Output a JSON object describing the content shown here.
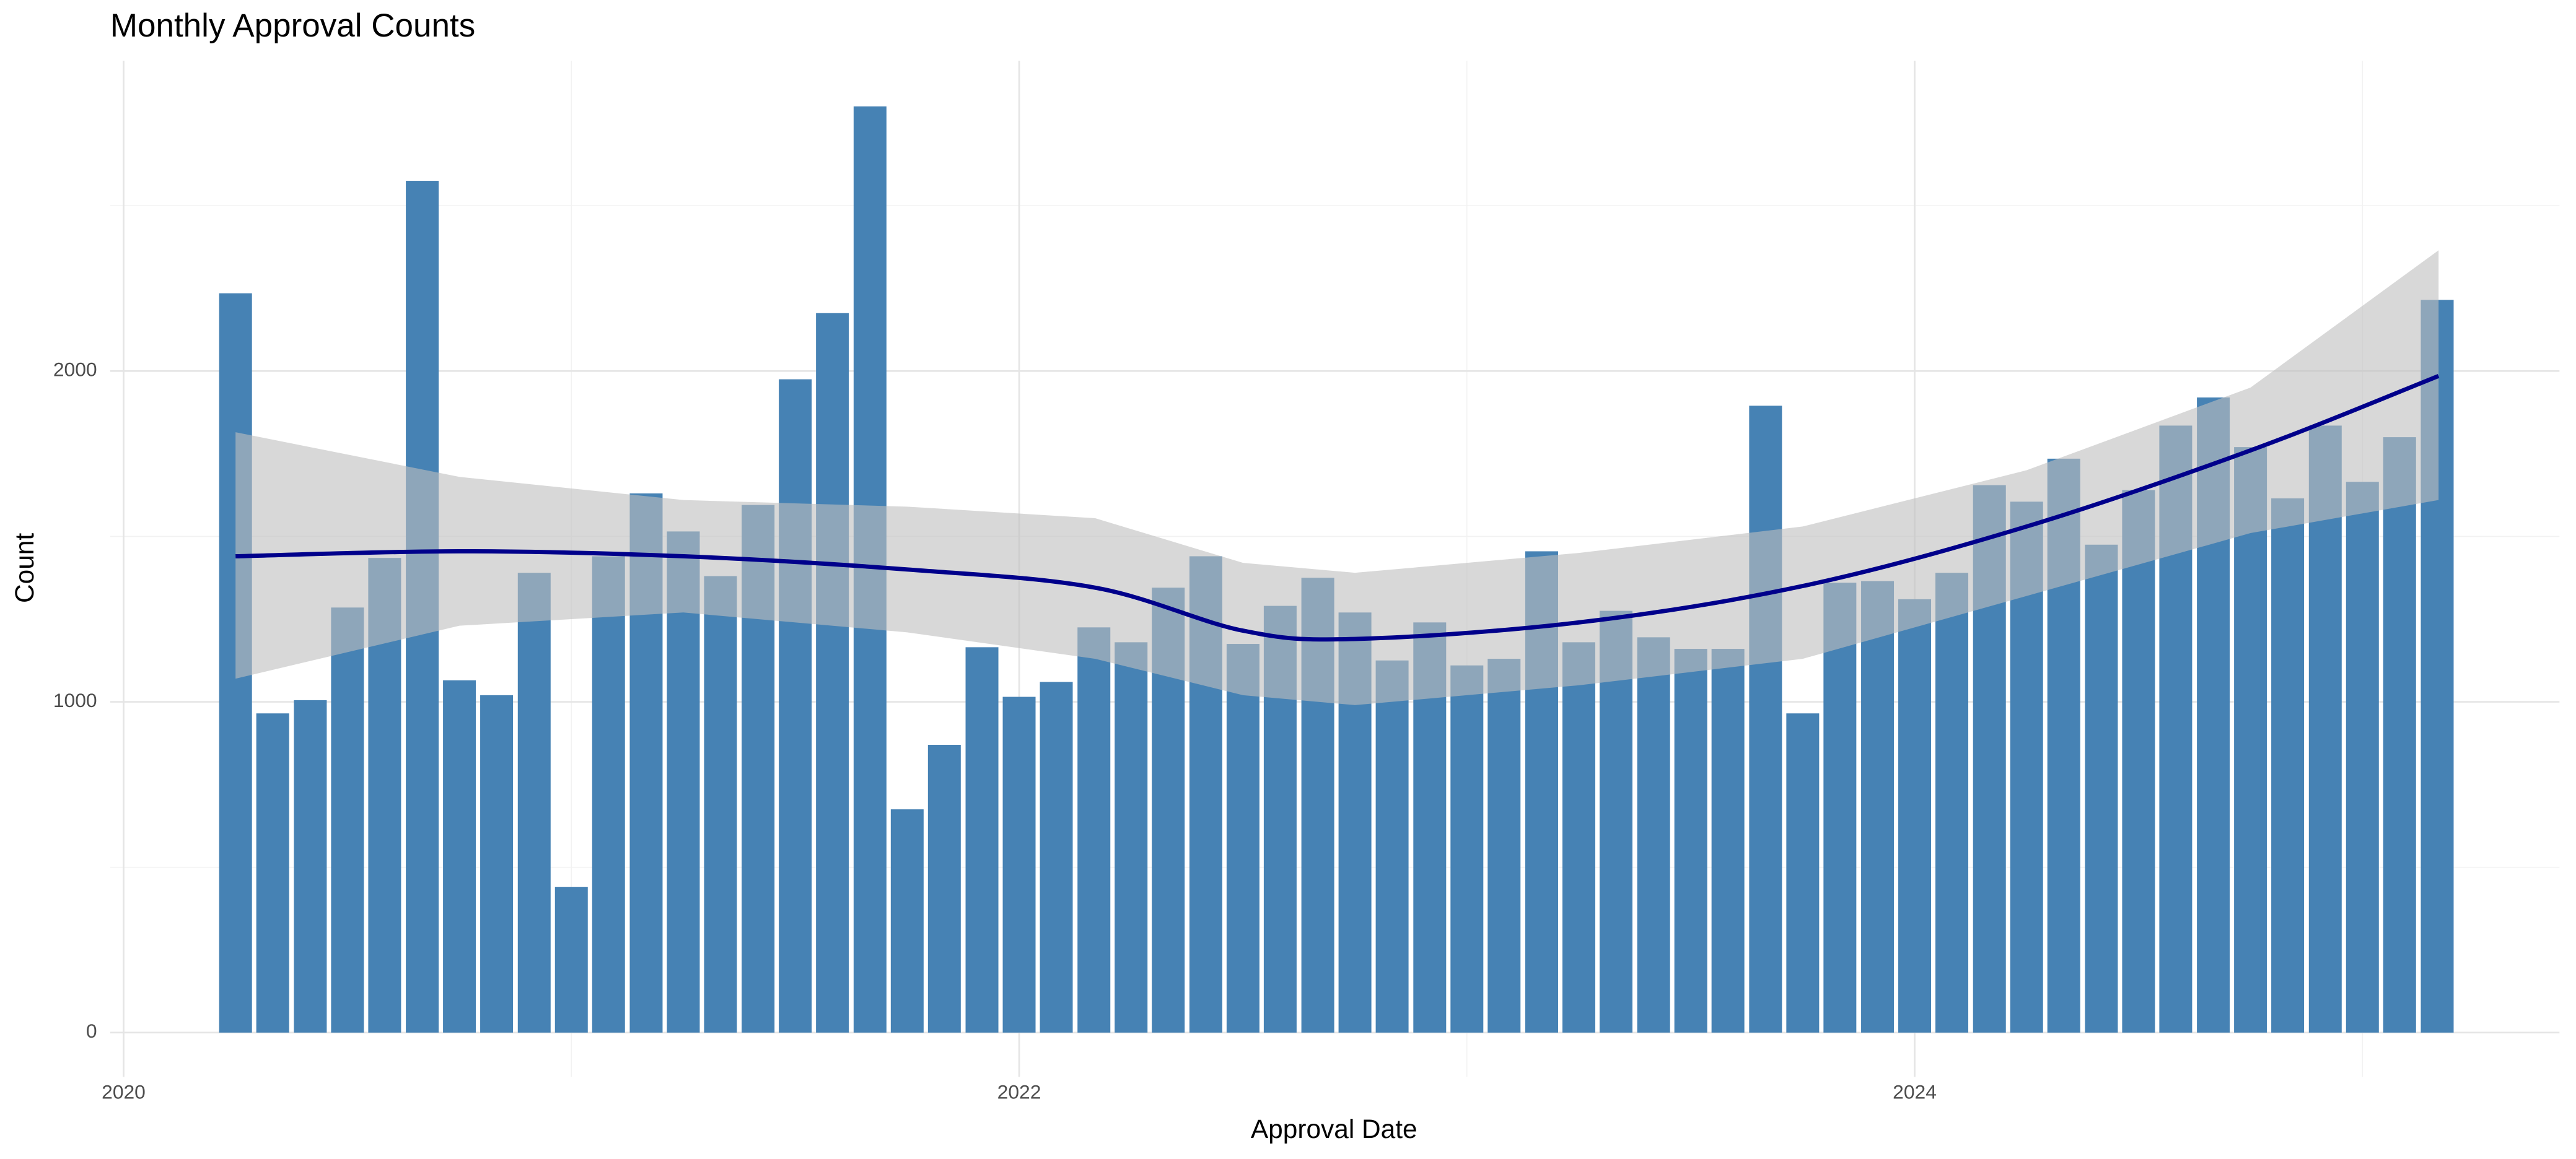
{
  "chart_data": {
    "type": "bar",
    "title": "Monthly Approval Counts",
    "x_label": "Approval Date",
    "y_label": "Count",
    "color": "#4682b4",
    "x": [
      2020.25,
      2020.333,
      2020.417,
      2020.5,
      2020.583,
      2020.667,
      2020.75,
      2020.833,
      2020.917,
      2021.0,
      2021.083,
      2021.167,
      2021.25,
      2021.333,
      2021.417,
      2021.5,
      2021.583,
      2021.667,
      2021.75,
      2021.833,
      2021.917,
      2022.0,
      2022.083,
      2022.167,
      2022.25,
      2022.333,
      2022.417,
      2022.5,
      2022.583,
      2022.667,
      2022.75,
      2022.833,
      2022.917,
      2023.0,
      2023.083,
      2023.167,
      2023.25,
      2023.333,
      2023.417,
      2023.5,
      2023.583,
      2023.667,
      2023.75,
      2023.833,
      2023.917,
      2024.0,
      2024.083,
      2024.167,
      2024.25,
      2024.333,
      2024.417,
      2024.5,
      2024.583,
      2024.667,
      2024.75,
      2024.833,
      2024.917,
      2025.0,
      2025.083,
      2025.167
    ],
    "values": [
      2235,
      965,
      1005,
      1285,
      1435,
      2575,
      1065,
      1020,
      1390,
      440,
      1440,
      1630,
      1515,
      1380,
      1595,
      1975,
      2175,
      2800,
      675,
      870,
      1165,
      1015,
      1060,
      1225,
      1180,
      1345,
      1440,
      1175,
      1290,
      1375,
      1270,
      1125,
      1240,
      1110,
      1130,
      1455,
      1180,
      1275,
      1195,
      1160,
      1160,
      1895,
      965,
      1360,
      1365,
      1310,
      1390,
      1655,
      1605,
      1735,
      1475,
      1640,
      1835,
      1920,
      1770,
      1615,
      1835,
      1665,
      1800,
      2215
    ],
    "trend": {
      "color": "#00008b",
      "band_color": "#bebebe",
      "x": [
        2020.25,
        2020.75,
        2021.25,
        2021.75,
        2022.17,
        2022.5,
        2022.75,
        2023.25,
        2023.75,
        2024.25,
        2024.75,
        2025.17
      ],
      "values": [
        1440,
        1455,
        1440,
        1400,
        1345,
        1215,
        1190,
        1240,
        1350,
        1530,
        1760,
        1985
      ],
      "lower": [
        1070,
        1230,
        1270,
        1210,
        1130,
        1020,
        990,
        1050,
        1130,
        1320,
        1510,
        1610
      ],
      "upper": [
        1815,
        1680,
        1610,
        1590,
        1555,
        1420,
        1390,
        1450,
        1530,
        1700,
        1950,
        2365
      ]
    },
    "xlim": [
      2019.97,
      2025.44
    ],
    "xticks": [
      2020,
      2022,
      2024
    ],
    "ylim": [
      -134,
      2938
    ],
    "yticks": [
      0,
      1000,
      2000
    ],
    "grid": true
  }
}
